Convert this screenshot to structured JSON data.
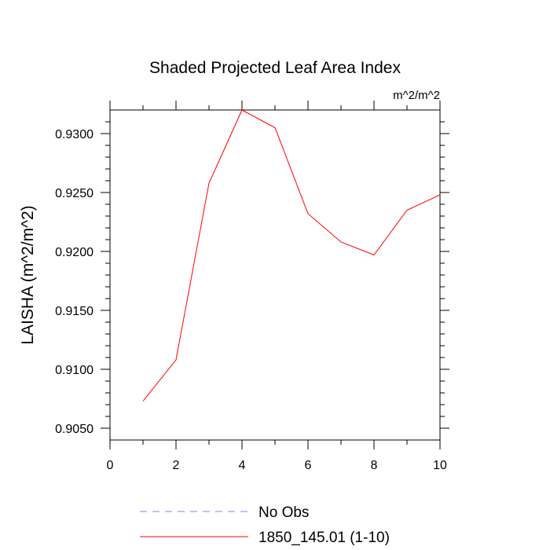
{
  "chart_data": {
    "type": "line",
    "title": "Shaded Projected Leaf Area Index",
    "units": "m^2/m^2",
    "ylabel": "LAISHA  (m^2/m^2)",
    "xlabel": "",
    "xlim": [
      0,
      10
    ],
    "ylim": [
      0.904,
      0.932
    ],
    "x_ticks": [
      0,
      2,
      4,
      6,
      8,
      10
    ],
    "x_tick_labels": [
      "0",
      "2",
      "4",
      "6",
      "8",
      "10"
    ],
    "y_ticks": [
      0.905,
      0.91,
      0.915,
      0.92,
      0.925,
      0.93
    ],
    "y_tick_labels": [
      "0.9050",
      "0.9100",
      "0.9150",
      "0.9200",
      "0.9250",
      "0.9300"
    ],
    "grid": false,
    "legend_placement": "bottom",
    "series": [
      {
        "name": "1850_145.01 (1-10)",
        "color": "#ff0000",
        "style": "solid",
        "x": [
          1,
          2,
          3,
          4,
          5,
          6,
          7,
          8,
          9,
          10
        ],
        "y": [
          0.9073,
          0.9108,
          0.9258,
          0.932,
          0.9305,
          0.9232,
          0.9208,
          0.9197,
          0.9235,
          0.9248
        ]
      }
    ],
    "legend": [
      {
        "label": "No Obs",
        "color": "#8080ff",
        "style": "dashed"
      },
      {
        "label": "1850_145.01 (1-10)",
        "color": "#ff0000",
        "style": "solid"
      }
    ]
  }
}
